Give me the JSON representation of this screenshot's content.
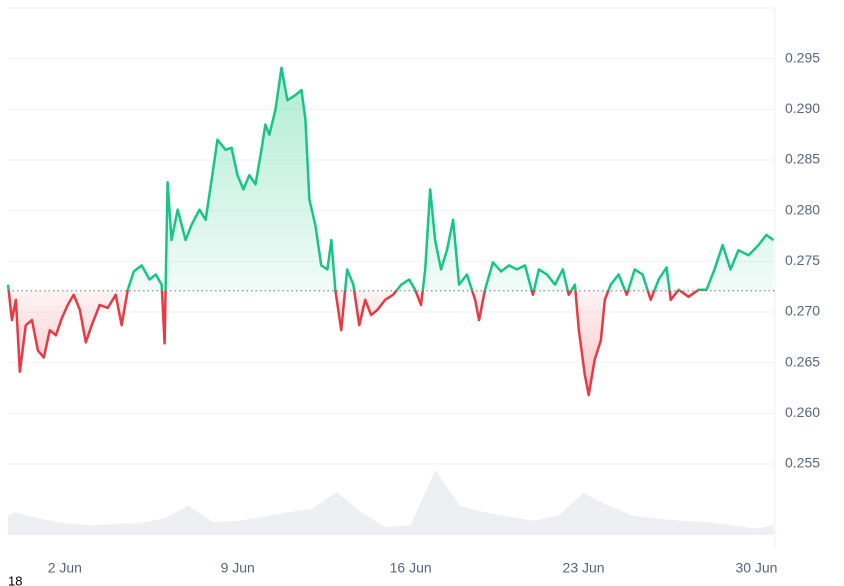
{
  "chart_data": {
    "type": "line",
    "x": [
      -0.3,
      -0.14,
      0.02,
      0.18,
      0.42,
      0.67,
      0.91,
      1.15,
      1.39,
      1.64,
      1.88,
      2.12,
      2.36,
      2.61,
      2.85,
      3.09,
      3.41,
      3.74,
      4.06,
      4.3,
      4.55,
      4.79,
      5.11,
      5.43,
      5.68,
      5.92,
      6.04,
      6.16,
      6.32,
      6.57,
      6.89,
      7.13,
      7.45,
      7.7,
      7.94,
      8.18,
      8.51,
      8.75,
      8.99,
      9.23,
      9.47,
      9.72,
      9.96,
      10.12,
      10.28,
      10.53,
      10.77,
      11.01,
      11.33,
      11.58,
      11.74,
      11.9,
      12.14,
      12.38,
      12.63,
      12.79,
      12.95,
      13.19,
      13.43,
      13.68,
      13.92,
      14.16,
      14.4,
      14.65,
      14.97,
      15.29,
      15.62,
      15.94,
      16.18,
      16.42,
      16.59,
      16.79,
      16.99,
      17.23,
      17.47,
      17.72,
      17.96,
      18.28,
      18.61,
      18.77,
      19.01,
      19.33,
      19.66,
      19.98,
      20.3,
      20.63,
      20.95,
      21.19,
      21.52,
      21.84,
      22.16,
      22.4,
      22.65,
      22.81,
      23.05,
      23.21,
      23.45,
      23.7,
      23.86,
      24.1,
      24.42,
      24.75,
      25.07,
      25.39,
      25.72,
      26.04,
      26.36,
      26.53,
      26.85,
      27.25,
      27.66,
      27.98,
      28.3,
      28.63,
      28.95,
      29.27,
      29.68,
      30.08,
      30.4,
      30.69
    ],
    "series": [
      {
        "name": "price",
        "color": "#16c784",
        "color_below": "#ea3943",
        "values": [
          0.2727,
          0.2692,
          0.2712,
          0.2641,
          0.2687,
          0.2692,
          0.2662,
          0.2655,
          0.2682,
          0.2677,
          0.2694,
          0.2707,
          0.2717,
          0.2702,
          0.267,
          0.2687,
          0.2707,
          0.2704,
          0.2717,
          0.2687,
          0.2722,
          0.274,
          0.2746,
          0.2732,
          0.2737,
          0.2727,
          0.2669,
          0.2828,
          0.2771,
          0.2801,
          0.2771,
          0.2786,
          0.2801,
          0.2791,
          0.283,
          0.287,
          0.286,
          0.2862,
          0.2835,
          0.2821,
          0.2835,
          0.2826,
          0.286,
          0.2885,
          0.2875,
          0.29,
          0.2941,
          0.2909,
          0.2914,
          0.2919,
          0.289,
          0.2811,
          0.2786,
          0.2746,
          0.2742,
          0.2771,
          0.2722,
          0.2682,
          0.2742,
          0.2727,
          0.2687,
          0.2712,
          0.2697,
          0.2702,
          0.2712,
          0.2717,
          0.2727,
          0.2732,
          0.2722,
          0.2707,
          0.2742,
          0.2821,
          0.2771,
          0.2742,
          0.2761,
          0.2791,
          0.2727,
          0.2737,
          0.2712,
          0.2692,
          0.2722,
          0.2749,
          0.274,
          0.2746,
          0.2742,
          0.2746,
          0.2717,
          0.2742,
          0.2737,
          0.2727,
          0.2742,
          0.2717,
          0.2727,
          0.2682,
          0.2638,
          0.2618,
          0.2653,
          0.2672,
          0.2712,
          0.2727,
          0.2737,
          0.2717,
          0.2742,
          0.2737,
          0.2712,
          0.2732,
          0.2744,
          0.2712,
          0.2722,
          0.2715,
          0.2722,
          0.2722,
          0.2742,
          0.2766,
          0.2742,
          0.2761,
          0.2756,
          0.2766,
          0.2776,
          0.2771
        ]
      }
    ],
    "baseline": 0.2721,
    "volume": {
      "x": [
        -0.3,
        0,
        1,
        2,
        3,
        4,
        5,
        6,
        7,
        8,
        9,
        10,
        11,
        12,
        13,
        14,
        15,
        16,
        17,
        18,
        19,
        20,
        21,
        22,
        23,
        24,
        25,
        26,
        27,
        28,
        29,
        30,
        30.7
      ],
      "values": [
        30,
        35,
        25,
        18,
        15,
        17,
        18,
        25,
        45,
        20,
        22,
        28,
        35,
        40,
        66,
        35,
        12,
        15,
        100,
        45,
        35,
        28,
        22,
        30,
        65,
        45,
        30,
        25,
        22,
        20,
        15,
        10,
        15
      ],
      "color": "#58667e"
    },
    "xlim": [
      -0.3,
      30.75
    ],
    "xticks": [
      {
        "value": 2,
        "label": "2 Jun"
      },
      {
        "value": 9,
        "label": "9 Jun"
      },
      {
        "value": 16,
        "label": "16 Jun"
      },
      {
        "value": 23,
        "label": "23 Jun"
      },
      {
        "value": 30,
        "label": "30 Jun"
      }
    ],
    "ylim": [
      0.2475,
      0.3
    ],
    "yticks": [
      0.255,
      {
        "value": 0.26,
        "label": "0.260"
      },
      0.265,
      {
        "value": 0.27,
        "label": "0.270"
      },
      0.275,
      {
        "value": 0.28,
        "label": "0.280"
      },
      0.285,
      {
        "value": 0.29,
        "label": "0.290"
      },
      0.295
    ],
    "grid": true,
    "cutoff_label": "18"
  }
}
